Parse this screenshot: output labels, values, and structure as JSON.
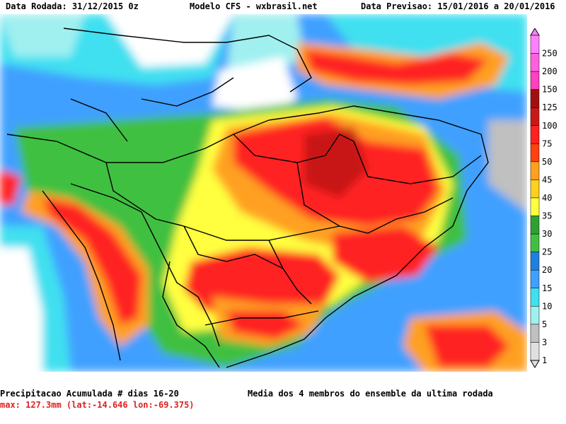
{
  "header": {
    "left": "Data Rodada: 31/12/2015 0z",
    "center": "Modelo CFS - wxbrasil.net",
    "right": "Data Previsao: 15/01/2016 a 20/01/2016"
  },
  "footer": {
    "title": "Precipitacao Acumulada # dias 16-20",
    "max": "max: 127.3mm (lat:-14.646 lon:-69.375)",
    "note": "Media dos 4 membros do ensemble da ultima rodada"
  },
  "colorbar": {
    "levels": [
      "250",
      "200",
      "150",
      "125",
      "100",
      "75",
      "50",
      "45",
      "40",
      "35",
      "30",
      "25",
      "20",
      "15",
      "10",
      "5",
      "3",
      "1"
    ],
    "colors": {
      "c250": "#ff80ff",
      "c200": "#ff60e0",
      "c150": "#ff40c0",
      "c125": "#a01010",
      "c100": "#c81818",
      "c75": "#ff2020",
      "c50": "#ff4010",
      "c45": "#ffa020",
      "c40": "#ffd020",
      "c35": "#ffff40",
      "c30": "#30a030",
      "c25": "#40c040",
      "c20": "#2080e0",
      "c15": "#40a0ff",
      "c10": "#40e0f0",
      "c5": "#a0f0f0",
      "c3": "#c0c0c0",
      "c1": "#e0e0e0"
    }
  }
}
